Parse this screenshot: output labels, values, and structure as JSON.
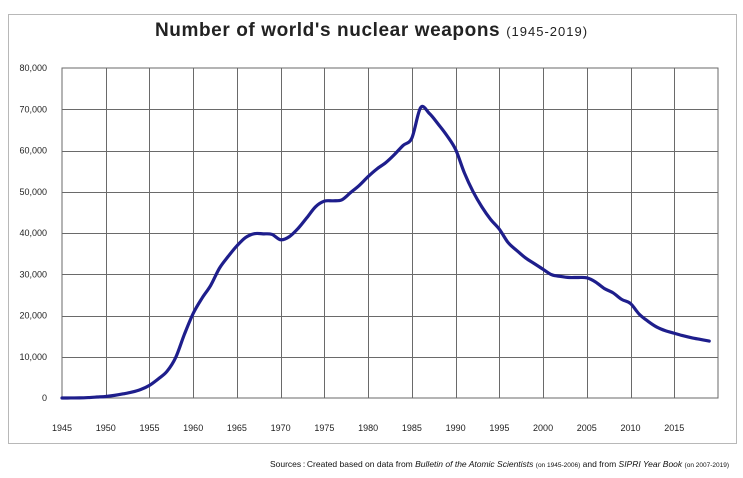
{
  "chart_data": {
    "type": "line",
    "title": "Number of world's nuclear weapons",
    "subtitle": "(1945-2019)",
    "xlabel": "",
    "ylabel": "",
    "xlim": [
      1945,
      2019
    ],
    "ylim": [
      0,
      80000
    ],
    "grid": true,
    "x_ticks": [
      1945,
      1950,
      1955,
      1960,
      1965,
      1970,
      1975,
      1980,
      1985,
      1990,
      1995,
      2000,
      2005,
      2010,
      2015
    ],
    "y_ticks": [
      0,
      10000,
      20000,
      30000,
      40000,
      50000,
      60000,
      70000,
      80000
    ],
    "x_tick_labels": [
      "1945",
      "1950",
      "1955",
      "1960",
      "1965",
      "1970",
      "1975",
      "1980",
      "1985",
      "1990",
      "1995",
      "2000",
      "2005",
      "2010",
      "2015"
    ],
    "y_tick_labels": [
      "0",
      "10,000",
      "20,000",
      "30,000",
      "40,000",
      "50,000",
      "60,000",
      "70,000",
      "80,000"
    ],
    "line_color": "#1e1e8c",
    "series": [
      {
        "x": [
          1945,
          1946,
          1947,
          1948,
          1949,
          1950,
          1951,
          1952,
          1953,
          1954,
          1955,
          1956,
          1957,
          1958,
          1959,
          1960,
          1961,
          1962,
          1963,
          1964,
          1965,
          1966,
          1967,
          1968,
          1969,
          1970,
          1971,
          1972,
          1973,
          1974,
          1975,
          1976,
          1977,
          1978,
          1979,
          1980,
          1981,
          1982,
          1983,
          1984,
          1985,
          1986,
          1987,
          1988,
          1989,
          1990,
          1991,
          1992,
          1993,
          1994,
          1995,
          1996,
          1997,
          1998,
          1999,
          2000,
          2001,
          2002,
          2003,
          2004,
          2005,
          2006,
          2007,
          2008,
          2009,
          2010,
          2011,
          2012,
          2013,
          2014,
          2015,
          2016,
          2017,
          2018,
          2019
        ],
        "values": [
          6,
          11,
          32,
          110,
          235,
          369,
          640,
          1005,
          1436,
          2063,
          3057,
          4618,
          6444,
          9822,
          15468,
          20508,
          24173,
          27297,
          31456,
          34322,
          36889,
          38927,
          39845,
          39797,
          39666,
          38361,
          39124,
          41123,
          43722,
          46386,
          47719,
          47808,
          48049,
          49808,
          51573,
          53684,
          55528,
          57036,
          59008,
          61236,
          63022,
          70374,
          68982,
          66432,
          63630,
          60246,
          54589,
          50013,
          46341,
          43311,
          40927,
          37687,
          35738,
          33955,
          32578,
          31201,
          29872,
          29468,
          29209,
          29212,
          29126,
          28128,
          26546,
          25500,
          23893,
          22900,
          20300,
          18600,
          17200,
          16300,
          15700,
          15100,
          14600,
          14200,
          13800
        ]
      }
    ],
    "source": {
      "prefix": "Sources : Created based on data from",
      "work1": "Bulletin of the Atomic Scientists",
      "range1": "(on 1945-2006)",
      "connector": "and from",
      "work2": "SIPRI Year Book",
      "range2": "(on 2007-2019)"
    }
  }
}
